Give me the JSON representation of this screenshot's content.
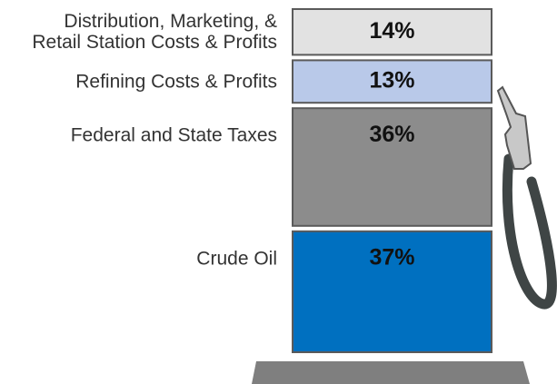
{
  "chart_data": {
    "type": "stacked-bar",
    "categories": [
      "Crude Oil",
      "Federal and State Taxes",
      "Refining Costs & Profits",
      "Distribution, Marketing, &\nRetail Station Costs & Profits"
    ],
    "values": [
      37,
      36,
      13,
      14
    ],
    "value_labels": [
      "37%",
      "36%",
      "13%",
      "14%"
    ],
    "colors": [
      "#0070c0",
      "#8c8c8c",
      "#b9c9e9",
      "#e2e2e2"
    ]
  }
}
